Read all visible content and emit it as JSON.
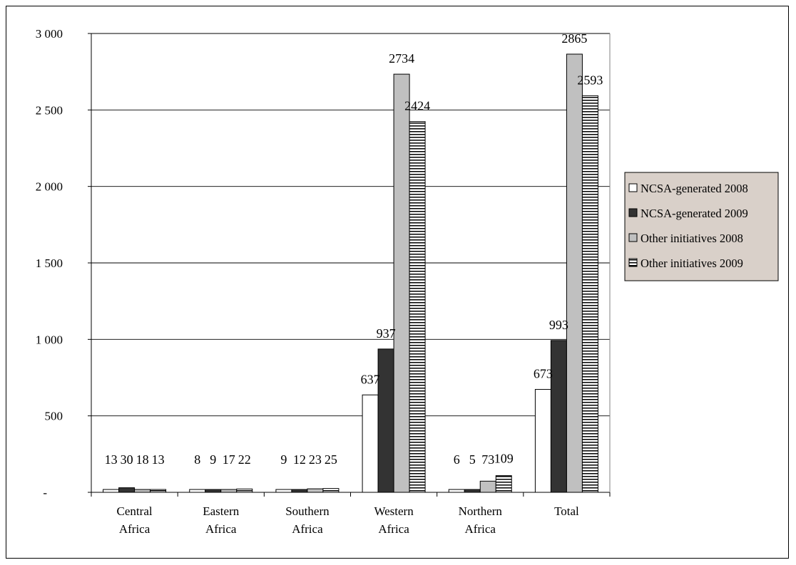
{
  "chart_data": {
    "type": "bar",
    "title": "",
    "xlabel": "",
    "ylabel": "",
    "categories": [
      [
        "Central",
        "Africa"
      ],
      [
        "Eastern",
        "Africa"
      ],
      [
        "Southern",
        "Africa"
      ],
      [
        "Western",
        "Africa"
      ],
      [
        "Northern",
        "Africa"
      ],
      [
        "Total"
      ]
    ],
    "series": [
      {
        "name": "NCSA-generated 2008",
        "values": [
          13,
          8,
          9,
          637,
          6,
          673
        ],
        "fill": "#ffffff",
        "pattern": "solid"
      },
      {
        "name": "NCSA-generated 2009",
        "values": [
          30,
          9,
          12,
          937,
          5,
          993
        ],
        "fill": "#333333",
        "pattern": "solid"
      },
      {
        "name": "Other initiatives 2008",
        "values": [
          18,
          17,
          23,
          2734,
          73,
          2865
        ],
        "fill": "#c0c0c0",
        "pattern": "solid"
      },
      {
        "name": "Other initiatives 2009",
        "values": [
          13,
          22,
          25,
          2424,
          109,
          2593
        ],
        "fill": "#ffffff",
        "pattern": "horizontal-lines"
      }
    ],
    "ylim": [
      0,
      3000
    ],
    "yticks": [
      0,
      500,
      1000,
      1500,
      2000,
      2500,
      3000
    ],
    "ytick_labels": [
      "-",
      "500",
      "1 000",
      "1 500",
      "2 000",
      "2 500",
      "3 000"
    ],
    "grid": true,
    "legend": "right",
    "legend_background": "#d9d0c9"
  }
}
